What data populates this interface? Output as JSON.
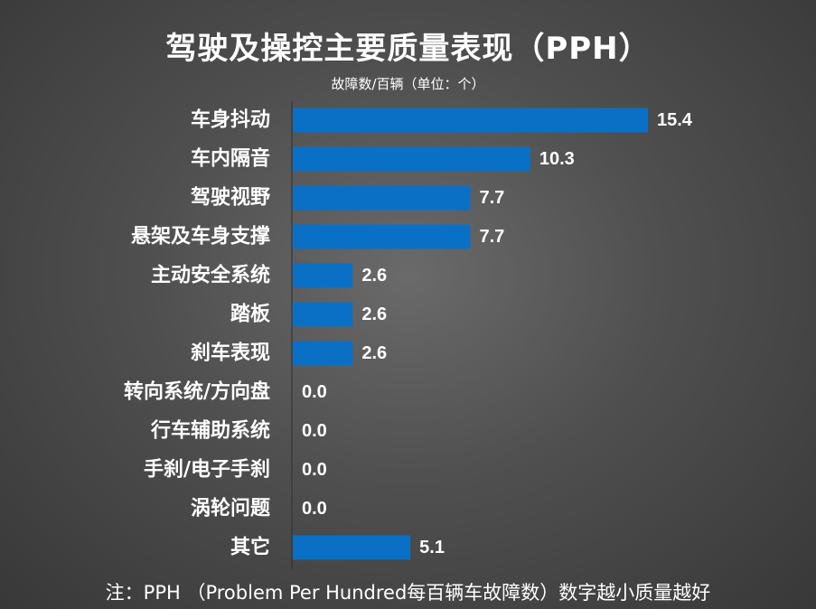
{
  "header": {
    "title": "驾驶及操控主要质量表现（PPH）",
    "subtitle": "故障数/百辆（单位：个）"
  },
  "footnote": "注：PPH （Problem Per Hundred每百辆车故障数）数字越小质量越好",
  "chart_data": {
    "type": "bar",
    "orientation": "horizontal",
    "title": "驾驶及操控主要质量表现（PPH）",
    "subtitle": "故障数/百辆（单位：个）",
    "categories": [
      "车身抖动",
      "车内隔音",
      "驾驶视野",
      "悬架及车身支撑",
      "主动安全系统",
      "踏板",
      "刹车表现",
      "转向系统/方向盘",
      "行车辅助系统",
      "手刹/电子手刹",
      "涡轮问题",
      "其它"
    ],
    "values": [
      15.4,
      10.3,
      7.7,
      7.7,
      2.6,
      2.6,
      2.6,
      0.0,
      0.0,
      0.0,
      0.0,
      5.1
    ],
    "value_labels": [
      "15.4",
      "10.3",
      "7.7",
      "7.7",
      "2.6",
      "2.6",
      "2.6",
      "0.0",
      "0.0",
      "0.0",
      "0.0",
      "5.1"
    ],
    "xlim": [
      0,
      15.4
    ],
    "bar_color": "#0a70c6",
    "grid": false,
    "legend": "none"
  }
}
